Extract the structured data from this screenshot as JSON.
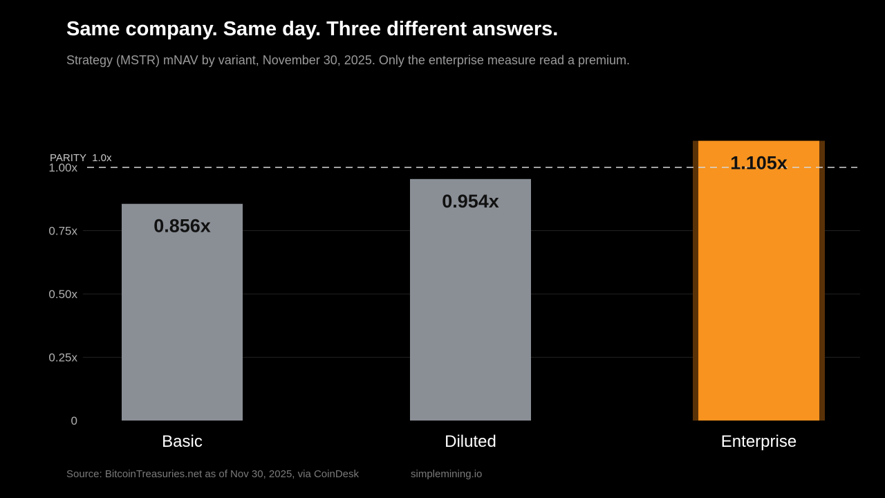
{
  "header": {
    "title": "Same company. Same day. Three different answers.",
    "subtitle": "Strategy (MSTR) mNAV by variant, November 30, 2025. Only the enterprise measure read a premium."
  },
  "footer": {
    "source": "Source: BitcoinTreasuries.net as of Nov 30, 2025, via CoinDesk",
    "brand": "simplemining.io"
  },
  "colors": {
    "neutral_bar": "#8a8f96",
    "highlight_bar": "#f7931e",
    "highlight_glow": "#5a3208",
    "gridline": "#222222",
    "parity_line": "#d8d8d8"
  },
  "chart_data": {
    "type": "bar",
    "categories": [
      "Basic",
      "Diluted",
      "Enterprise"
    ],
    "values": [
      0.856,
      0.954,
      1.105
    ],
    "data_labels": [
      "0.856x",
      "0.954x",
      "1.105x"
    ],
    "highlight": "Enterprise",
    "ylim": [
      0,
      1.1
    ],
    "yticks": [
      0,
      0.25,
      0.5,
      0.75,
      1.0
    ],
    "ytick_labels": [
      "0",
      "0.25x",
      "0.50x",
      "0.75x",
      "1.00x"
    ],
    "reference_line": {
      "value": 1.0,
      "label": "PARITY  1.0x",
      "style": "dashed"
    },
    "grid": true,
    "xlabel": "",
    "ylabel": ""
  }
}
